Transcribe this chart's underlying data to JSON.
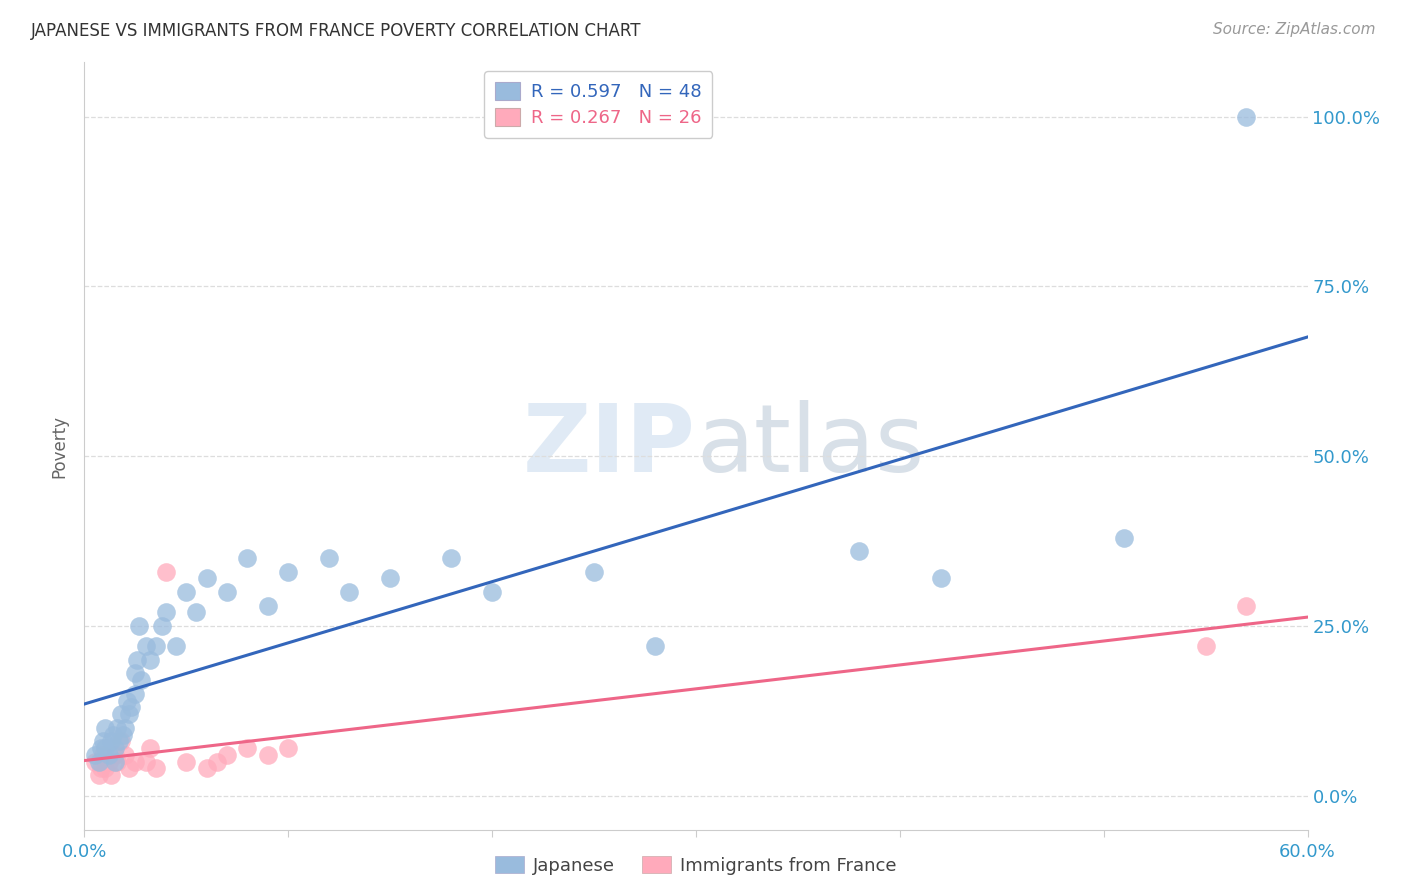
{
  "title": "JAPANESE VS IMMIGRANTS FROM FRANCE POVERTY CORRELATION CHART",
  "source": "Source: ZipAtlas.com",
  "ylabel": "Poverty",
  "xmin": 0.0,
  "xmax": 0.6,
  "ymin": -0.05,
  "ymax": 1.08,
  "ytick_vals": [
    0.0,
    0.25,
    0.5,
    0.75,
    1.0
  ],
  "ytick_labels": [
    "0.0%",
    "25.0%",
    "50.0%",
    "75.0%",
    "100.0%"
  ],
  "xtick_vals": [
    0.0,
    0.1,
    0.2,
    0.3,
    0.4,
    0.5,
    0.6
  ],
  "xtick_show": {
    "0.0": "0.0%",
    "0.6": "60.0%"
  },
  "legend_blue_R": "R = 0.597",
  "legend_blue_N": "N = 48",
  "legend_pink_R": "R = 0.267",
  "legend_pink_N": "N = 26",
  "blue_scatter_color": "#99BBDD",
  "pink_scatter_color": "#FFAABB",
  "blue_line_color": "#3366BB",
  "pink_line_color": "#EE6688",
  "watermark_color": "#DDEEFF",
  "background_color": "#FFFFFF",
  "japanese_x": [
    0.005,
    0.007,
    0.008,
    0.009,
    0.01,
    0.01,
    0.012,
    0.013,
    0.014,
    0.015,
    0.015,
    0.016,
    0.017,
    0.018,
    0.019,
    0.02,
    0.021,
    0.022,
    0.023,
    0.025,
    0.025,
    0.026,
    0.027,
    0.028,
    0.03,
    0.032,
    0.035,
    0.038,
    0.04,
    0.045,
    0.05,
    0.055,
    0.06,
    0.07,
    0.08,
    0.09,
    0.1,
    0.12,
    0.13,
    0.15,
    0.18,
    0.2,
    0.25,
    0.28,
    0.38,
    0.42,
    0.51,
    0.57
  ],
  "japanese_y": [
    0.06,
    0.05,
    0.07,
    0.08,
    0.07,
    0.1,
    0.06,
    0.08,
    0.09,
    0.05,
    0.07,
    0.1,
    0.08,
    0.12,
    0.09,
    0.1,
    0.14,
    0.12,
    0.13,
    0.15,
    0.18,
    0.2,
    0.25,
    0.17,
    0.22,
    0.2,
    0.22,
    0.25,
    0.27,
    0.22,
    0.3,
    0.27,
    0.32,
    0.3,
    0.35,
    0.28,
    0.33,
    0.35,
    0.3,
    0.32,
    0.35,
    0.3,
    0.33,
    0.22,
    0.36,
    0.32,
    0.38,
    1.0
  ],
  "france_x": [
    0.005,
    0.007,
    0.008,
    0.009,
    0.01,
    0.012,
    0.013,
    0.015,
    0.016,
    0.018,
    0.02,
    0.022,
    0.025,
    0.03,
    0.032,
    0.035,
    0.04,
    0.05,
    0.06,
    0.065,
    0.07,
    0.08,
    0.09,
    0.1,
    0.55,
    0.57
  ],
  "france_y": [
    0.05,
    0.03,
    0.04,
    0.06,
    0.04,
    0.05,
    0.03,
    0.06,
    0.05,
    0.08,
    0.06,
    0.04,
    0.05,
    0.05,
    0.07,
    0.04,
    0.33,
    0.05,
    0.04,
    0.05,
    0.06,
    0.07,
    0.06,
    0.07,
    0.22,
    0.28
  ]
}
